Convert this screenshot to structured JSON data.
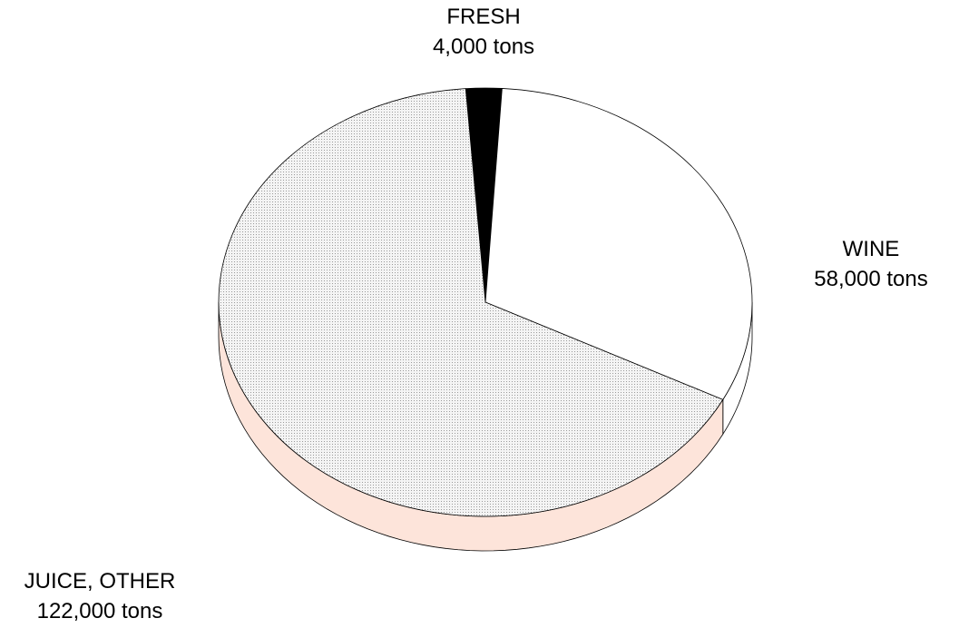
{
  "chart_data": {
    "type": "pie",
    "title": "",
    "unit": "tons",
    "slices": [
      {
        "name": "FRESH",
        "value": 4000,
        "label": "4,000 tons",
        "color": "#000000"
      },
      {
        "name": "WINE",
        "value": 58000,
        "label": "58,000 tons",
        "color": "#ffffff"
      },
      {
        "name": "JUICE, OTHER",
        "value": 122000,
        "label": "122,000 tons",
        "color": "#e6e6e6"
      }
    ],
    "style": "3d-tilted",
    "side_color": "#fde4da"
  }
}
